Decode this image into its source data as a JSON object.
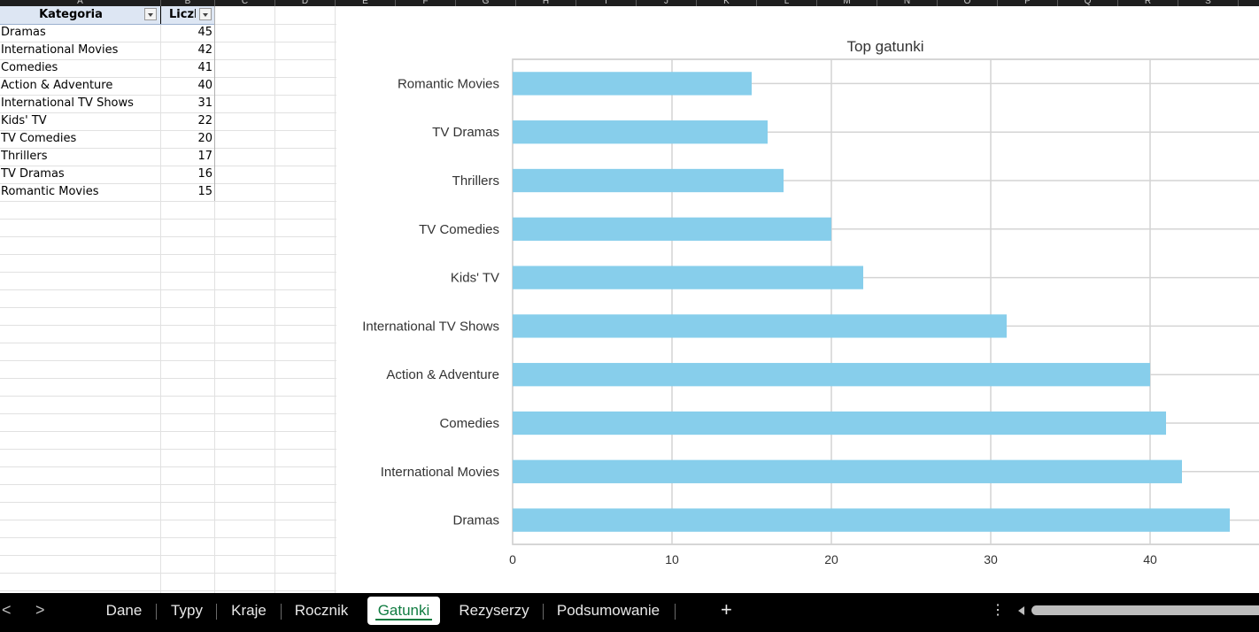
{
  "columns": [
    "A",
    "B",
    "C",
    "D",
    "E",
    "F",
    "G",
    "H",
    "I",
    "J",
    "K",
    "L",
    "M",
    "N",
    "O",
    "P",
    "Q",
    "R",
    "S"
  ],
  "table": {
    "headers": [
      "Kategoria",
      "Liczb"
    ],
    "rows": [
      [
        "Dramas",
        "45"
      ],
      [
        "International Movies",
        "42"
      ],
      [
        "Comedies",
        "41"
      ],
      [
        "Action & Adventure",
        "40"
      ],
      [
        "International TV Shows",
        "31"
      ],
      [
        "Kids' TV",
        "22"
      ],
      [
        "TV Comedies",
        "20"
      ],
      [
        "Thrillers",
        "17"
      ],
      [
        "TV Dramas",
        "16"
      ],
      [
        "Romantic Movies",
        "15"
      ]
    ]
  },
  "chart_data": {
    "type": "bar",
    "orientation": "horizontal",
    "title": "Top gatunki",
    "xlabel": "",
    "ylabel": "",
    "categories": [
      "Dramas",
      "International Movies",
      "Comedies",
      "Action & Adventure",
      "International TV Shows",
      "Kids' TV",
      "TV Comedies",
      "Thrillers",
      "TV Dramas",
      "Romantic Movies"
    ],
    "values": [
      45,
      42,
      41,
      40,
      31,
      22,
      20,
      17,
      16,
      15
    ],
    "xlim": [
      0,
      47
    ],
    "xticks": [
      0,
      10,
      20,
      30,
      40
    ],
    "grid": true,
    "bar_color": "#87ceeb"
  },
  "sheet_tabs": {
    "tabs": [
      "Dane",
      "Typy",
      "Kraje",
      "Rocznik",
      "Gatunki",
      "Rezyserzy",
      "Podsumowanie"
    ],
    "active": "Gatunki",
    "prev_label": "<",
    "next_label": ">",
    "add_label": "+",
    "more_label": "⋮"
  },
  "colors": {
    "accent": "#107c41",
    "tabbar": "#000000",
    "table_header": "#dde6f3"
  }
}
